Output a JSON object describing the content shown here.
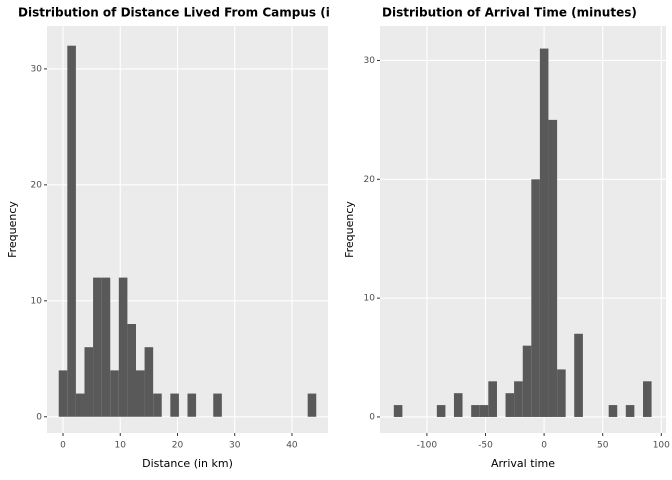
{
  "chart_data": [
    {
      "type": "histogram",
      "title": "Distribution of Distance Lived From Campus (i",
      "xlabel": "Distance (in km)",
      "ylabel": "Frequency",
      "color": "#595959",
      "bins": [
        -0.75,
        0.75,
        2.25,
        3.75,
        5.25,
        6.75,
        8.25,
        9.75,
        11.25,
        12.75,
        14.25,
        15.75,
        17.25,
        18.75,
        20.25,
        21.75,
        23.25,
        24.75,
        26.25,
        27.75,
        29.25,
        30.75,
        32.25,
        33.75,
        35.25,
        36.75,
        38.25,
        39.75,
        41.25,
        42.75,
        44.25
      ],
      "counts": [
        4,
        32,
        2,
        6,
        12,
        12,
        4,
        12,
        8,
        4,
        6,
        2,
        0,
        2,
        0,
        2,
        0,
        0,
        2,
        0,
        0,
        0,
        0,
        0,
        0,
        0,
        0,
        0,
        0,
        2
      ],
      "xlim": [
        -2.8,
        46.3
      ],
      "ylim": [
        -1.4,
        33.7
      ],
      "xticks": [
        0,
        10,
        20,
        30,
        40
      ],
      "yticks": [
        0,
        10,
        20,
        30
      ],
      "grid": true
    },
    {
      "type": "histogram",
      "title": "Distribution of Arrival Time (minutes)",
      "xlabel": "Arrival time",
      "ylabel": "Frequency",
      "color": "#595959",
      "bins": [
        -128.2,
        -120.9,
        -113.5,
        -106.2,
        -98.9,
        -91.5,
        -84.2,
        -76.9,
        -69.6,
        -62.2,
        -54.9,
        -47.6,
        -40.2,
        -32.9,
        -25.6,
        -18.2,
        -10.9,
        -3.6,
        3.7,
        11.1,
        18.4,
        25.7,
        33.1,
        40.4,
        47.7,
        55.1,
        62.4,
        69.7,
        77.0,
        84.4,
        91.7
      ],
      "counts": [
        1,
        0,
        0,
        0,
        0,
        1,
        0,
        2,
        0,
        1,
        1,
        3,
        0,
        2,
        3,
        6,
        20,
        31,
        25,
        4,
        0,
        7,
        0,
        0,
        0,
        1,
        0,
        1,
        0,
        3
      ],
      "xlim": [
        -140,
        104
      ],
      "ylim": [
        -1.35,
        32.9
      ],
      "xticks": [
        -100,
        -50,
        0,
        50,
        100
      ],
      "yticks": [
        0,
        10,
        20,
        30
      ],
      "grid": true
    }
  ]
}
